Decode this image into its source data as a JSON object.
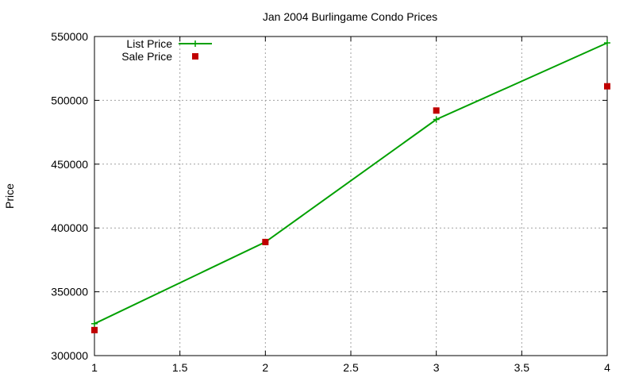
{
  "chart_data": {
    "type": "line",
    "title": "Jan 2004 Burlingame Condo Prices",
    "xlabel": "",
    "ylabel": "Price",
    "xlim": [
      1,
      4
    ],
    "ylim": [
      300000,
      550000
    ],
    "xticks": [
      1,
      1.5,
      2,
      2.5,
      3,
      3.5,
      4
    ],
    "yticks": [
      300000,
      350000,
      400000,
      450000,
      500000,
      550000
    ],
    "grid": true,
    "legend_position": "top-left",
    "series": [
      {
        "name": "List Price",
        "style": "line-with-plus-markers",
        "color": "#00a000",
        "x": [
          1,
          2,
          3,
          4
        ],
        "y": [
          325000,
          389000,
          485000,
          545000
        ]
      },
      {
        "name": "Sale Price",
        "style": "square-markers",
        "color": "#c00000",
        "x": [
          1,
          2,
          3,
          4
        ],
        "y": [
          320000,
          389000,
          492000,
          511000
        ]
      }
    ]
  }
}
